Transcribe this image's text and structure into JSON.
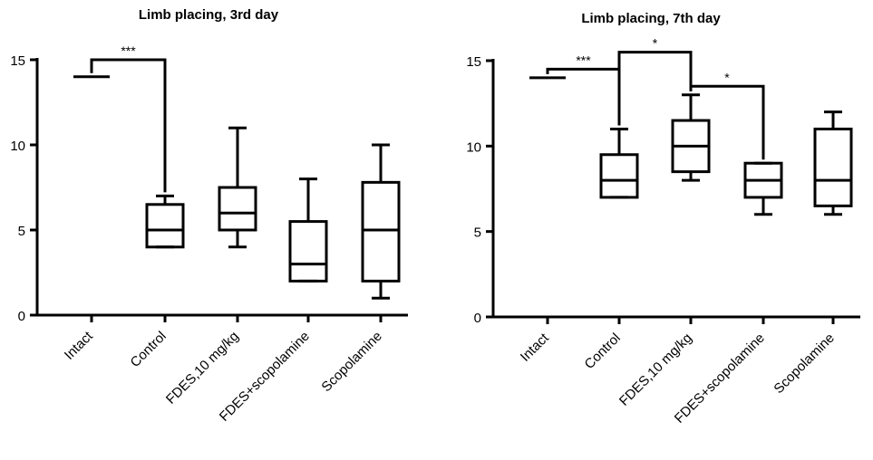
{
  "chart_data": [
    {
      "type": "box",
      "title": "Limb placing, 3rd day",
      "ylim": [
        0,
        15
      ],
      "yticks": [
        0,
        5,
        10,
        15
      ],
      "categories": [
        "Intact",
        "Control",
        "FDES,10 mg/kg",
        "FDES+scopolamine",
        "Scopolamine"
      ],
      "boxes": [
        {
          "min": 14,
          "q1": 14,
          "median": 14,
          "q3": 14,
          "max": 14
        },
        {
          "min": 4,
          "q1": 4,
          "median": 5,
          "q3": 6.5,
          "max": 7
        },
        {
          "min": 4,
          "q1": 5,
          "median": 6,
          "q3": 7.5,
          "max": 11
        },
        {
          "min": 2,
          "q1": 2,
          "median": 3,
          "q3": 5.5,
          "max": 8
        },
        {
          "min": 1,
          "q1": 2,
          "median": 5,
          "q3": 7.8,
          "max": 10
        }
      ],
      "significance": [
        {
          "from": "Intact",
          "to": "Control",
          "label": "***",
          "level": 15
        }
      ]
    },
    {
      "type": "box",
      "title": "Limb placing, 7th day",
      "ylim": [
        0,
        15
      ],
      "yticks": [
        0,
        5,
        10,
        15
      ],
      "categories": [
        "Intact",
        "Control",
        "FDES,10 mg/kg",
        "FDES+scopolamine",
        "Scopolamine"
      ],
      "boxes": [
        {
          "min": 14,
          "q1": 14,
          "median": 14,
          "q3": 14,
          "max": 14
        },
        {
          "min": 7,
          "q1": 7,
          "median": 8,
          "q3": 9.5,
          "max": 11
        },
        {
          "min": 8,
          "q1": 8.5,
          "median": 10,
          "q3": 11.5,
          "max": 13
        },
        {
          "min": 6,
          "q1": 7,
          "median": 8,
          "q3": 9,
          "max": 9
        },
        {
          "min": 6,
          "q1": 6.5,
          "median": 8,
          "q3": 11,
          "max": 12
        }
      ],
      "significance": [
        {
          "from": "Intact",
          "to": "Control",
          "label": "***",
          "level": 14.5
        },
        {
          "from": "Control",
          "to": "FDES,10 mg/kg",
          "label": "*",
          "level": 15.5
        },
        {
          "from": "FDES,10 mg/kg",
          "to": "FDES+scopolamine",
          "label": "*",
          "level": 13.5
        }
      ]
    }
  ]
}
